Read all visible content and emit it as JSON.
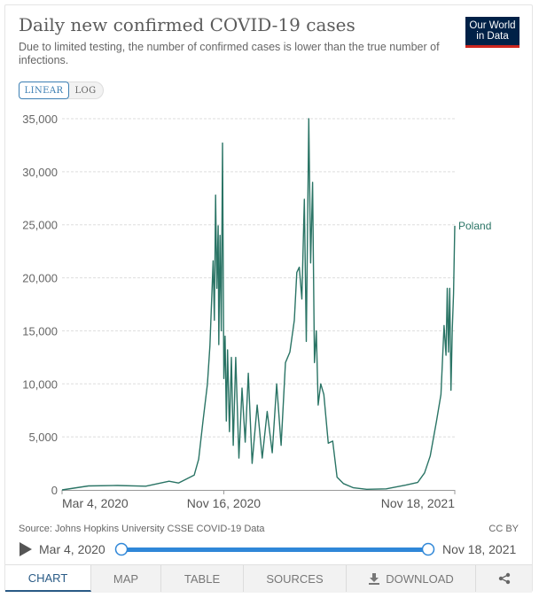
{
  "header": {
    "title": "Daily new confirmed COVID-19 cases",
    "subtitle": "Due to limited testing, the number of confirmed cases is lower than the true number of infections.",
    "logo_line1": "Our World",
    "logo_line2": "in Data"
  },
  "scale_toggle": {
    "linear": "LINEAR",
    "log": "LOG",
    "selected": "LINEAR"
  },
  "chart_data": {
    "type": "line",
    "title": "Daily new confirmed COVID-19 cases",
    "xlabel": "",
    "ylabel": "",
    "xlim": [
      "2020-03-04",
      "2021-11-18"
    ],
    "ylim": [
      0,
      35000
    ],
    "y_ticks": [
      "0",
      "5,000",
      "10,000",
      "15,000",
      "20,000",
      "25,000",
      "30,000",
      "35,000"
    ],
    "x_ticks": [
      "Mar 4, 2020",
      "Nov 16, 2020",
      "Nov 18, 2021"
    ],
    "grid": "horizontal dashed",
    "series": [
      {
        "name": "Poland",
        "color": "#2a7465",
        "x": [
          "2020-03-04",
          "2020-04-15",
          "2020-05-31",
          "2020-07-15",
          "2020-08-21",
          "2020-09-05",
          "2020-09-30",
          "2020-10-07",
          "2020-10-14",
          "2020-10-21",
          "2020-10-25",
          "2020-10-30",
          "2020-11-01",
          "2020-11-03",
          "2020-11-05",
          "2020-11-07",
          "2020-11-08",
          "2020-11-10",
          "2020-11-12",
          "2020-11-14",
          "2020-11-16",
          "2020-11-18",
          "2020-11-20",
          "2020-11-22",
          "2020-11-25",
          "2020-11-28",
          "2020-12-01",
          "2020-12-05",
          "2020-12-10",
          "2020-12-15",
          "2020-12-20",
          "2020-12-25",
          "2020-12-31",
          "2021-01-08",
          "2021-01-16",
          "2021-01-24",
          "2021-02-01",
          "2021-02-08",
          "2021-02-15",
          "2021-02-22",
          "2021-03-01",
          "2021-03-08",
          "2021-03-12",
          "2021-03-16",
          "2021-03-20",
          "2021-03-24",
          "2021-03-27",
          "2021-03-31",
          "2021-04-03",
          "2021-04-06",
          "2021-04-09",
          "2021-04-12",
          "2021-04-15",
          "2021-04-19",
          "2021-04-24",
          "2021-05-01",
          "2021-05-08",
          "2021-05-15",
          "2021-05-25",
          "2021-06-10",
          "2021-07-01",
          "2021-08-01",
          "2021-09-01",
          "2021-09-20",
          "2021-10-01",
          "2021-10-10",
          "2021-10-20",
          "2021-10-27",
          "2021-11-01",
          "2021-11-04",
          "2021-11-06",
          "2021-11-08",
          "2021-11-10",
          "2021-11-12",
          "2021-11-14",
          "2021-11-16",
          "2021-11-18"
        ],
        "values": [
          0,
          380,
          420,
          350,
          820,
          650,
          1400,
          2900,
          6500,
          10000,
          13600,
          21600,
          16000,
          27800,
          19000,
          24900,
          13700,
          24000,
          15000,
          32700,
          10500,
          14500,
          6500,
          13200,
          5500,
          12500,
          4200,
          12500,
          3000,
          9600,
          4500,
          11000,
          2500,
          8000,
          3000,
          7400,
          3500,
          10000,
          4200,
          12000,
          13000,
          16000,
          20500,
          21000,
          18000,
          27400,
          14000,
          35000,
          21400,
          29000,
          12000,
          15000,
          8000,
          10000,
          9000,
          4400,
          4600,
          1200,
          600,
          200,
          60,
          100,
          450,
          700,
          1600,
          3200,
          6500,
          9000,
          15500,
          12700,
          19000,
          13000,
          19000,
          9400,
          15200,
          18500,
          24900
        ]
      }
    ]
  },
  "footer": {
    "source": "Source: Johns Hopkins University CSSE COVID-19 Data",
    "license": "CC BY"
  },
  "timeline": {
    "start": "Mar 4, 2020",
    "end": "Nov 18, 2021"
  },
  "tabs": [
    "CHART",
    "MAP",
    "TABLE",
    "SOURCES",
    "DOWNLOAD"
  ],
  "active_tab": "CHART",
  "colors": {
    "accent": "#3c7fb3",
    "slider": "#2f87d8",
    "line": "#2a7465",
    "brand": "#002147",
    "brand_red": "#ce261e"
  }
}
